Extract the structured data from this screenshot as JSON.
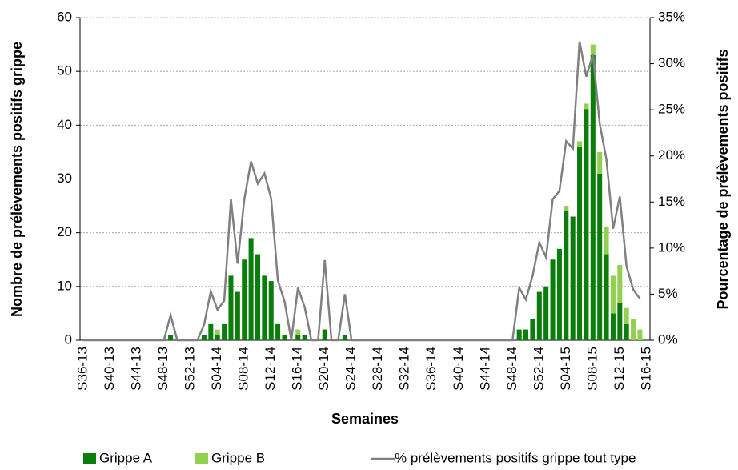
{
  "chart_data": {
    "type": "bar",
    "stacked": true,
    "x_label": "Semaines",
    "y_label": "Nombre de prélèvements positifs grippe",
    "y2_label": "Pourcentage de prélèvements positifs",
    "categories": [
      "S36-13",
      null,
      null,
      null,
      "S40-13",
      null,
      null,
      null,
      "S44-13",
      null,
      null,
      null,
      "S48-13",
      null,
      null,
      null,
      "S52-13",
      null,
      null,
      null,
      "S04-14",
      null,
      null,
      null,
      "S08-14",
      null,
      null,
      null,
      "S12-14",
      null,
      null,
      null,
      "S16-14",
      null,
      null,
      null,
      "S20-14",
      null,
      null,
      null,
      "S24-14",
      null,
      null,
      null,
      "S28-14",
      null,
      null,
      null,
      "S32-14",
      null,
      null,
      null,
      "S36-14",
      null,
      null,
      null,
      "S40-14",
      null,
      null,
      null,
      "S44-14",
      null,
      null,
      null,
      "S48-14",
      null,
      null,
      null,
      "S52-14",
      null,
      null,
      null,
      "S04-15",
      null,
      null,
      null,
      "S08-15",
      null,
      null,
      null,
      "S12-15",
      null,
      null,
      null,
      "S16-15"
    ],
    "series": [
      {
        "name": "Grippe A",
        "color": "#0b7d0b",
        "values": [
          0,
          0,
          0,
          0,
          0,
          0,
          0,
          0,
          0,
          0,
          0,
          0,
          0,
          1,
          0,
          0,
          0,
          0,
          1,
          3,
          1,
          3,
          12,
          9,
          15,
          19,
          16,
          12,
          11,
          3,
          1,
          0,
          1,
          1,
          0,
          0,
          2,
          0,
          0,
          1,
          0,
          0,
          0,
          0,
          0,
          0,
          0,
          0,
          0,
          0,
          0,
          0,
          0,
          0,
          0,
          0,
          0,
          0,
          0,
          0,
          0,
          0,
          0,
          0,
          0,
          2,
          2,
          4,
          9,
          10,
          15,
          17,
          24,
          23,
          36,
          43,
          53,
          31,
          16,
          5,
          7,
          3,
          0,
          0,
          0
        ]
      },
      {
        "name": "Grippe B",
        "color": "#92d050",
        "values": [
          0,
          0,
          0,
          0,
          0,
          0,
          0,
          0,
          0,
          0,
          0,
          0,
          0,
          0,
          0,
          0,
          0,
          0,
          0,
          0,
          1,
          0,
          0,
          0,
          0,
          0,
          0,
          0,
          0,
          0,
          0,
          0,
          1,
          0,
          0,
          0,
          0,
          0,
          0,
          0,
          0,
          0,
          0,
          0,
          0,
          0,
          0,
          0,
          0,
          0,
          0,
          0,
          0,
          0,
          0,
          0,
          0,
          0,
          0,
          0,
          0,
          0,
          0,
          0,
          0,
          0,
          0,
          0,
          0,
          0,
          0,
          0,
          1,
          0,
          1,
          1,
          2,
          4,
          5,
          7,
          7,
          3,
          4,
          2,
          0
        ]
      },
      {
        "name": "% prélèvements positifs grippe tout type",
        "type": "line",
        "axis": "y2",
        "color": "#808080",
        "values": [
          0,
          0,
          0,
          0,
          0,
          0,
          0,
          0,
          0,
          0,
          0,
          0,
          0,
          2.7,
          0,
          0,
          0,
          0,
          1.7,
          5.3,
          3.3,
          4.3,
          15.3,
          8.3,
          15.3,
          19.4,
          17,
          18.1,
          15.4,
          6.5,
          4.2,
          0,
          5.7,
          3.6,
          0,
          0,
          8.7,
          0,
          0,
          5,
          0,
          0,
          0,
          0,
          0,
          0,
          0,
          0,
          0,
          0,
          0,
          0,
          0,
          0,
          0,
          0,
          0,
          0,
          0,
          0,
          0,
          0,
          0,
          0,
          0,
          5.7,
          4.4,
          7,
          10.6,
          9,
          15.3,
          16.2,
          21.6,
          20.8,
          32.4,
          28.6,
          31,
          23.5,
          19.6,
          12.1,
          15.6,
          8,
          5.5,
          4.5,
          null
        ]
      }
    ],
    "ylim": [
      0,
      60
    ],
    "yticks": [
      0,
      10,
      20,
      30,
      40,
      50,
      60
    ],
    "y2lim": [
      0,
      35
    ],
    "y2ticks": [
      {
        "value": 0,
        "label": "0%"
      },
      {
        "value": 5,
        "label": "5%"
      },
      {
        "value": 10,
        "label": "10%"
      },
      {
        "value": 15,
        "label": "15%"
      },
      {
        "value": 20,
        "label": "20%"
      },
      {
        "value": 25,
        "label": "25%"
      },
      {
        "value": 30,
        "label": "30%"
      },
      {
        "value": 35,
        "label": "35%"
      }
    ],
    "grid": true,
    "legend": "bottom"
  }
}
